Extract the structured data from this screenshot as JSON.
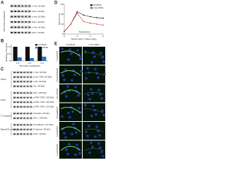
{
  "panel_a": {
    "letter": "A",
    "side_label": "Time after transfection",
    "rows": [
      "c-Yes, 62 kDa",
      "Actin, 42 kDa",
      "c-Yes, 62 kDa",
      "Actin, 42 kDa",
      "c-Yes, 62 kDa",
      "Actin, 42 kDa"
    ]
  },
  "panel_b": {
    "letter": "B",
    "type": "bar",
    "y_label": "Relative c-Yes level",
    "x_label": "Time after transfection",
    "categories": [
      "1 d",
      "2 d",
      "3 d"
    ],
    "series": [
      {
        "name": "Ctrl RNAi",
        "color": "#111111",
        "values": [
          1,
          1,
          1
        ]
      },
      {
        "name": "c-Yes RNAi",
        "color": "#2e6fc0",
        "values": [
          0.25,
          0.2,
          0.3
        ]
      }
    ],
    "ylim": [
      0,
      1.2
    ],
    "yticks": [
      0,
      0.5,
      {
        "value": 1,
        "label": "1.0"
      }
    ]
  },
  "panel_c": {
    "letter": "C",
    "groups": [
      {
        "name": "SFKs",
        "rows": [
          "c-Yes, 62 kDa",
          "p-Src Y530, 60 kDa",
          "c-Src, 60 kDa",
          "Fyn, 59 kDa"
        ]
      },
      {
        "name": "FAKs",
        "rows": [
          "FAK, 125 kDa",
          "p-FAK-Y397, 125 kDa",
          "p-FAK-Y407, 125 kDa",
          "p-FAK-Y576, 125 kDa"
        ]
      },
      {
        "name": "TJ proteins",
        "rows": [
          "Occludin, 65 kDa",
          "ZO-1, 195 kDa"
        ]
      },
      {
        "name": "Basal ES proteins",
        "rows": [
          "N-Cadherin, 127 kDa",
          "β-Catenin, 92 kDa",
          "Actin, 42 kDa"
        ]
      }
    ]
  },
  "panel_d": {
    "letter": "D",
    "type": "line",
    "y_label": "TER (Ω·cm²)",
    "x_label": "Sertoli cells in culture (day)",
    "annotation": "Transfection",
    "x": [
      0,
      1,
      2,
      3,
      4,
      5,
      6
    ],
    "series": [
      {
        "name": "Ctrl RNAi",
        "color": "#111111",
        "values": [
          5,
          20,
          45,
          38,
          35,
          33,
          32
        ]
      },
      {
        "name": "c-Yes RNAi",
        "color": "#d0312d",
        "values": [
          5,
          20,
          42,
          25,
          22,
          20,
          18
        ]
      }
    ],
    "xlim": [
      0,
      6
    ],
    "xticks": [
      0,
      2,
      4,
      6
    ],
    "ylim": [
      0,
      60
    ],
    "yticks": [
      0,
      20,
      40,
      60
    ]
  },
  "panel_e": {
    "letter": "E",
    "columns": [
      "Ctrl RNAi",
      "c-Yes RNAi"
    ],
    "rows": [
      "c-Yes/DAPI",
      "Occludin/DAPI",
      "ZO-1/DAPI",
      "N-Cad/DAPI",
      "β-Cat/DAPI",
      "F-actin/DAPI"
    ]
  }
}
